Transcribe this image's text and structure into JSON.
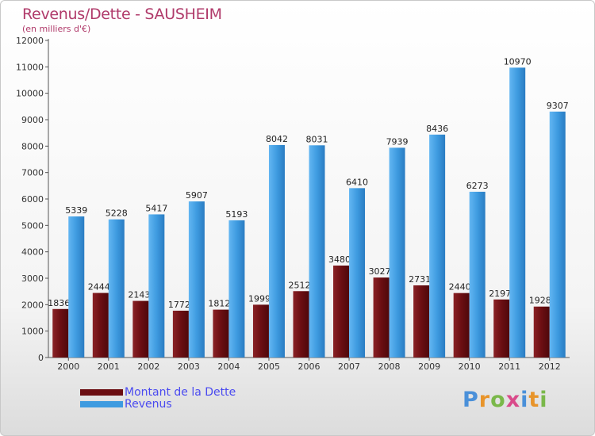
{
  "header": {
    "title": "Revenus/Dette - SAUSHEIM",
    "subtitle": "(en milliers d'€)"
  },
  "chart_data": {
    "type": "bar",
    "categories": [
      "2000",
      "2001",
      "2002",
      "2003",
      "2004",
      "2005",
      "2006",
      "2007",
      "2008",
      "2009",
      "2010",
      "2011",
      "2012"
    ],
    "series": [
      {
        "name": "Montant de la Dette",
        "color": "#6b0e12",
        "values": [
          1836,
          2444,
          2143,
          1772,
          1812,
          1999,
          2512,
          3480,
          3027,
          2731,
          2440,
          2197,
          1928
        ]
      },
      {
        "name": "Revenus",
        "color": "#3e9be0",
        "values": [
          5339,
          5228,
          5417,
          5907,
          5193,
          8042,
          8031,
          6410,
          7939,
          8436,
          6273,
          10970,
          9307
        ]
      }
    ],
    "ylim": [
      0,
      12000
    ],
    "yticks": [
      0,
      1000,
      2000,
      3000,
      4000,
      5000,
      6000,
      7000,
      8000,
      9000,
      10000,
      11000,
      12000
    ],
    "grid": false,
    "legend": "bottom-left"
  },
  "logo": {
    "letters": [
      "P",
      "r",
      "o",
      "x",
      "i",
      "t",
      "i"
    ],
    "colors": [
      "#4a90d9",
      "#e8942a",
      "#7ab84a",
      "#d94a8a",
      "#4a90d9",
      "#e8942a",
      "#7ab84a"
    ]
  }
}
